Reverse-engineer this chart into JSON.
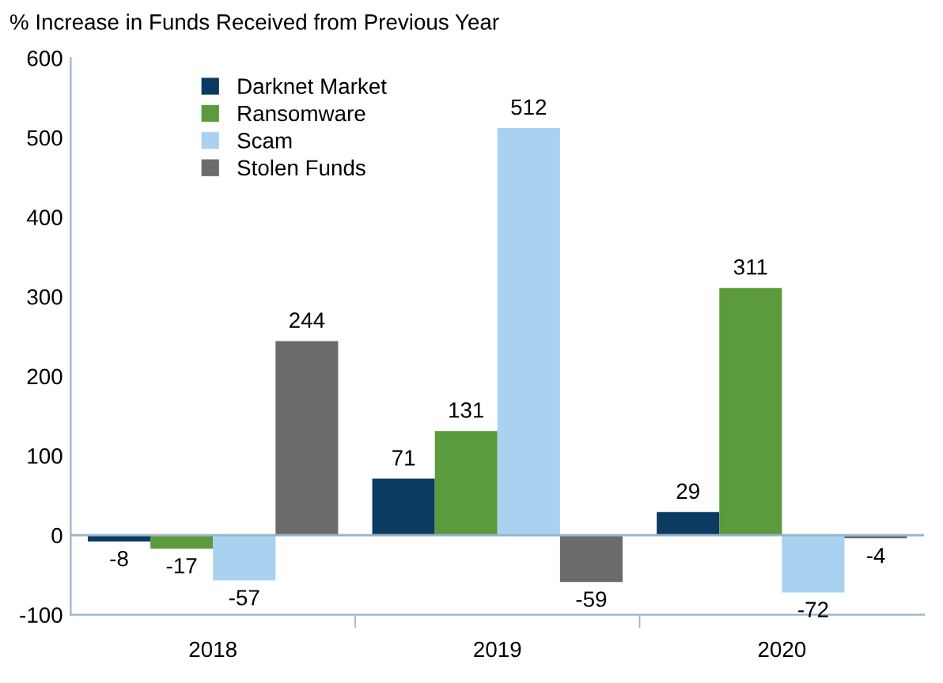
{
  "chart_data": {
    "type": "bar",
    "title": "% Increase in Funds Received from Previous Year",
    "categories": [
      "2018",
      "2019",
      "2020"
    ],
    "series": [
      {
        "name": "Darknet Market",
        "color": "#0b3a62",
        "values": [
          -8,
          71,
          29
        ]
      },
      {
        "name": "Ransomware",
        "color": "#5b9a3d",
        "values": [
          -17,
          131,
          311
        ]
      },
      {
        "name": "Scam",
        "color": "#a9d2f1",
        "values": [
          -57,
          512,
          -72
        ]
      },
      {
        "name": "Stolen Funds",
        "color": "#6b6b6b",
        "values": [
          244,
          -59,
          -4
        ]
      }
    ],
    "ylim": [
      -100,
      600
    ],
    "yticks": [
      -100,
      0,
      100,
      200,
      300,
      400,
      500,
      600
    ],
    "ref_lines": [
      {
        "axis": "y",
        "value": 0,
        "color": "#9bb3c7"
      }
    ],
    "grid": false,
    "legend": "top left",
    "data_labels": true
  }
}
